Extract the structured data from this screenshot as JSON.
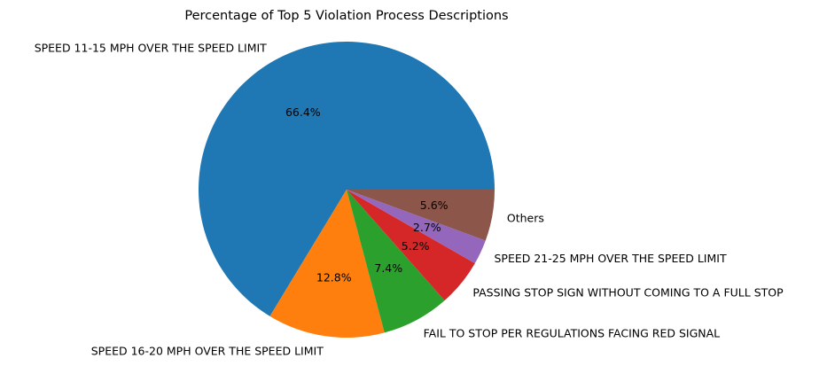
{
  "chart_data": {
    "type": "pie",
    "title": "Percentage of Top 5 Violation Process Descriptions",
    "categories": [
      "SPEED 11-15 MPH OVER THE SPEED LIMIT",
      "SPEED 16-20 MPH OVER THE SPEED LIMIT",
      "FAIL TO STOP PER REGULATIONS FACING RED SIGNAL",
      "PASSING STOP SIGN WITHOUT COMING TO A FULL STOP",
      "SPEED 21-25 MPH OVER THE SPEED LIMIT",
      "Others"
    ],
    "values": [
      66.4,
      12.8,
      7.4,
      5.2,
      2.7,
      5.6
    ],
    "percent_labels": [
      "66.4%",
      "12.8%",
      "7.4%",
      "5.2%",
      "2.7%",
      "5.6%"
    ],
    "colors": [
      "#1f77b4",
      "#ff7f0e",
      "#2ca02c",
      "#d62728",
      "#9467bd",
      "#8c564b"
    ],
    "start_angle": 0,
    "direction": "counterclockwise",
    "legend": "none"
  }
}
